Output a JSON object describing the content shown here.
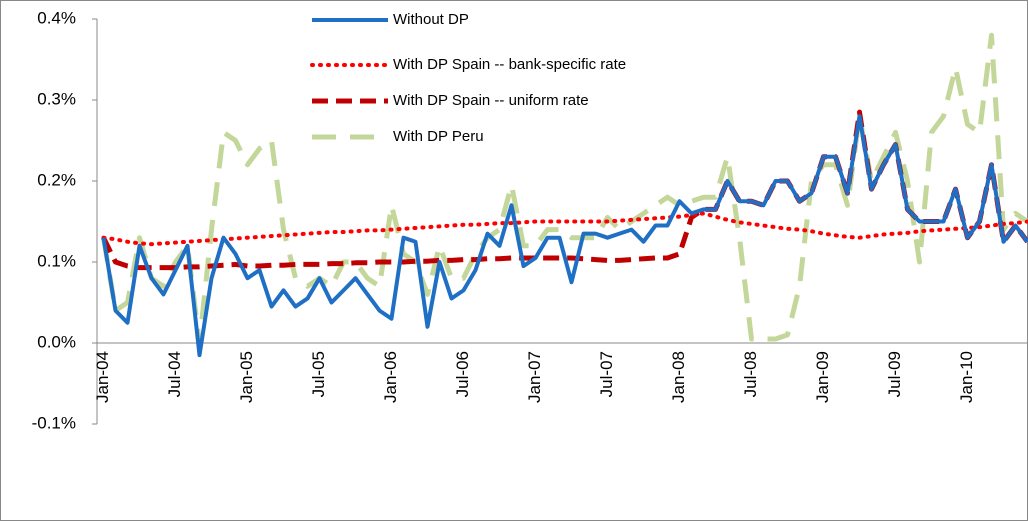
{
  "chart_data": {
    "type": "line",
    "categories": [
      "Jan-04",
      null,
      null,
      null,
      null,
      null,
      "Jul-04",
      null,
      null,
      null,
      null,
      null,
      "Jan-05",
      null,
      null,
      null,
      null,
      null,
      "Jul-05",
      null,
      null,
      null,
      null,
      null,
      "Jan-06",
      null,
      null,
      null,
      null,
      null,
      "Jul-06",
      null,
      null,
      null,
      null,
      null,
      "Jan-07",
      null,
      null,
      null,
      null,
      null,
      "Jul-07",
      null,
      null,
      null,
      null,
      null,
      "Jan-08",
      null,
      null,
      null,
      null,
      null,
      "Jul-08",
      null,
      null,
      null,
      null,
      null,
      "Jan-09",
      null,
      null,
      null,
      null,
      null,
      "Jul-09",
      null,
      null,
      null,
      null,
      null,
      "Jan-10",
      null,
      null,
      null,
      null,
      null
    ],
    "ylim": [
      -0.1,
      0.4
    ],
    "yticks": [
      {
        "value": -0.1,
        "label": "-0.1%"
      },
      {
        "value": 0.0,
        "label": "0.0%"
      },
      {
        "value": 0.1,
        "label": "0.1%"
      },
      {
        "value": 0.2,
        "label": "0.2%"
      },
      {
        "value": 0.3,
        "label": "0.3%"
      },
      {
        "value": 0.4,
        "label": "0.4%"
      }
    ],
    "series": [
      {
        "name": "Without DP",
        "color": "#1f6fc5",
        "style": "solid",
        "values": [
          0.13,
          0.04,
          0.025,
          0.12,
          0.08,
          0.06,
          0.09,
          0.12,
          -0.015,
          0.08,
          0.13,
          0.11,
          0.08,
          0.09,
          0.045,
          0.065,
          0.045,
          0.055,
          0.08,
          0.05,
          0.065,
          0.08,
          0.06,
          0.04,
          0.03,
          0.13,
          0.125,
          0.02,
          0.1,
          0.055,
          0.065,
          0.09,
          0.135,
          0.12,
          0.17,
          0.095,
          0.105,
          0.13,
          0.13,
          0.075,
          0.135,
          0.135,
          0.13,
          0.135,
          0.14,
          0.125,
          0.145,
          0.145,
          0.175,
          0.16,
          0.165,
          0.165,
          0.2,
          0.175,
          0.175,
          0.17,
          0.2,
          0.2,
          0.175,
          0.185,
          0.23,
          0.23,
          0.185,
          0.28,
          0.19,
          0.22,
          0.245,
          0.165,
          0.15,
          0.15,
          0.15,
          0.19,
          0.13,
          0.15,
          0.22,
          0.125,
          0.145,
          0.125
        ]
      },
      {
        "name": "With DP Spain -- bank-specific rate",
        "color": "#ff0000",
        "style": "dotted",
        "values": [
          0.13,
          0.128,
          0.125,
          0.123,
          0.122,
          0.123,
          0.124,
          0.125,
          0.126,
          0.127,
          0.128,
          0.129,
          0.13,
          0.131,
          0.132,
          0.133,
          0.134,
          0.135,
          0.136,
          0.137,
          0.137,
          0.138,
          0.139,
          0.139,
          0.14,
          0.141,
          0.142,
          0.143,
          0.144,
          0.145,
          0.146,
          0.146,
          0.147,
          0.148,
          0.148,
          0.149,
          0.15,
          0.15,
          0.15,
          0.15,
          0.15,
          0.15,
          0.15,
          0.151,
          0.152,
          0.153,
          0.154,
          0.155,
          0.156,
          0.158,
          0.16,
          0.156,
          0.152,
          0.149,
          0.147,
          0.145,
          0.143,
          0.141,
          0.14,
          0.138,
          0.135,
          0.133,
          0.131,
          0.13,
          0.132,
          0.134,
          0.135,
          0.136,
          0.138,
          0.139,
          0.14,
          0.141,
          0.142,
          0.143,
          0.145,
          0.147,
          0.148,
          0.15
        ]
      },
      {
        "name": "With DP Spain -- uniform rate",
        "color": "#c00000",
        "style": "dashed",
        "values": [
          0.13,
          0.1,
          0.095,
          0.093,
          0.093,
          0.093,
          0.093,
          0.094,
          0.094,
          0.095,
          0.096,
          0.097,
          0.095,
          0.095,
          0.096,
          0.096,
          0.097,
          0.097,
          0.097,
          0.098,
          0.098,
          0.099,
          0.099,
          0.1,
          0.1,
          0.1,
          0.101,
          0.101,
          0.102,
          0.102,
          0.103,
          0.103,
          0.104,
          0.104,
          0.105,
          0.105,
          0.105,
          0.105,
          0.105,
          0.105,
          0.104,
          0.103,
          0.102,
          0.102,
          0.103,
          0.104,
          0.105,
          0.105,
          0.11,
          0.155,
          0.165,
          0.165,
          0.2,
          0.175,
          0.175,
          0.17,
          0.2,
          0.2,
          0.175,
          0.185,
          0.23,
          0.23,
          0.185,
          0.285,
          0.19,
          0.22,
          0.245,
          0.165,
          0.15,
          0.15,
          0.15,
          0.19,
          0.13,
          0.15,
          0.22,
          0.125,
          0.145,
          0.125
        ]
      },
      {
        "name": "With DP Peru",
        "color": "#c4d79b",
        "style": "longdash",
        "values": [
          0.13,
          0.04,
          0.05,
          0.13,
          0.08,
          0.07,
          0.1,
          0.12,
          0.0,
          0.14,
          0.26,
          0.25,
          0.22,
          0.24,
          0.25,
          0.14,
          0.08,
          0.07,
          0.08,
          0.07,
          0.1,
          0.1,
          0.08,
          0.07,
          0.17,
          0.11,
          0.1,
          0.06,
          0.12,
          0.08,
          0.08,
          0.11,
          0.13,
          0.14,
          0.195,
          0.12,
          0.12,
          0.14,
          0.14,
          0.13,
          0.13,
          0.13,
          0.155,
          0.14,
          0.15,
          0.16,
          0.17,
          0.18,
          0.17,
          0.175,
          0.18,
          0.18,
          0.23,
          0.13,
          0.005,
          0.005,
          0.005,
          0.01,
          0.07,
          0.2,
          0.22,
          0.22,
          0.17,
          0.28,
          0.2,
          0.23,
          0.26,
          0.2,
          0.1,
          0.26,
          0.28,
          0.34,
          0.27,
          0.26,
          0.38,
          0.14,
          0.16,
          0.15
        ]
      }
    ]
  }
}
